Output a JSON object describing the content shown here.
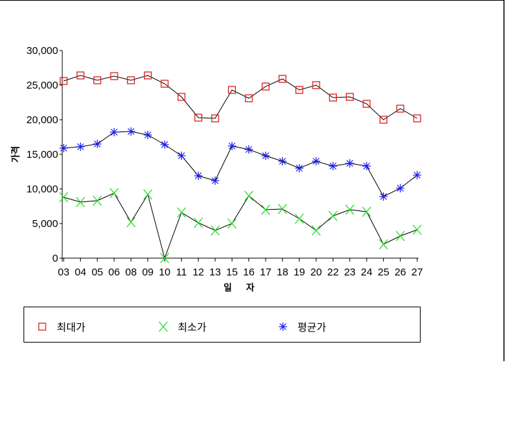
{
  "chart_data": {
    "type": "line",
    "xlabel": "일 자",
    "ylabel": "가격",
    "ylim": [
      0,
      30000
    ],
    "yticks": [
      0,
      5000,
      10000,
      15000,
      20000,
      25000,
      30000
    ],
    "ytick_labels": [
      "0",
      "5,000",
      "10,000",
      "15,000",
      "20,000",
      "25,000",
      "30,000"
    ],
    "categories": [
      "03",
      "04",
      "05",
      "06",
      "08",
      "09",
      "10",
      "11",
      "12",
      "13",
      "15",
      "16",
      "17",
      "18",
      "19",
      "20",
      "22",
      "23",
      "24",
      "25",
      "26",
      "27"
    ],
    "grid": false,
    "legend_position": "bottom",
    "series": [
      {
        "name": "최대가",
        "marker": "square",
        "color": "#e02020",
        "values": [
          25600,
          26400,
          25700,
          26300,
          25700,
          26400,
          25200,
          23300,
          20300,
          20200,
          24300,
          23100,
          24800,
          25900,
          24300,
          25000,
          23200,
          23300,
          22300,
          20000,
          21600,
          20200
        ]
      },
      {
        "name": "최소가",
        "marker": "x",
        "color": "#22dd22",
        "values": [
          8800,
          8100,
          8300,
          9400,
          5200,
          9200,
          0,
          6600,
          5100,
          4000,
          5000,
          9000,
          7000,
          7100,
          5700,
          4000,
          6100,
          7000,
          6700,
          2000,
          3200,
          4100
        ]
      },
      {
        "name": "평균가",
        "marker": "asterisk",
        "color": "#1a1aee",
        "values": [
          15900,
          16100,
          16500,
          18200,
          18300,
          17800,
          16400,
          14800,
          11900,
          11200,
          16200,
          15700,
          14800,
          14000,
          13000,
          14000,
          13300,
          13700,
          13300,
          8900,
          10100,
          12000
        ]
      }
    ]
  }
}
